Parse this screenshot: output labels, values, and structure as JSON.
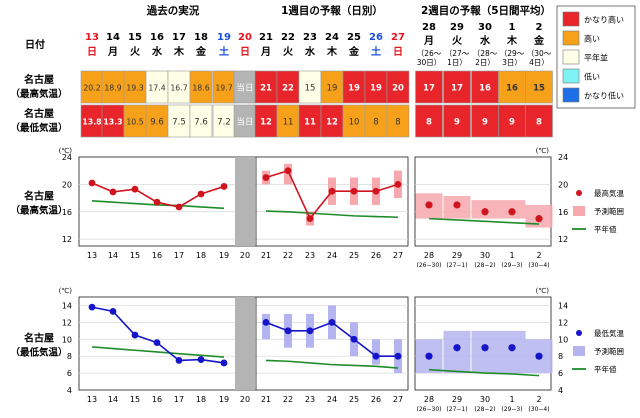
{
  "header": {
    "past_title": "過去の実況",
    "week1_title": "1週目の予報（日別）",
    "week2_title": "2週目の予報（5日間平均）",
    "date_label": "日付",
    "today": "当日"
  },
  "row_labels": {
    "city": "名古屋",
    "max": "（最高気温）",
    "min": "（最低気温）"
  },
  "daily": {
    "dates": [
      "13",
      "14",
      "15",
      "16",
      "17",
      "18",
      "19",
      "20",
      "21",
      "22",
      "23",
      "24",
      "25",
      "26",
      "27"
    ],
    "weekdays": [
      "日",
      "月",
      "火",
      "水",
      "木",
      "金",
      "土",
      "日",
      "月",
      "火",
      "水",
      "木",
      "金",
      "土",
      "日"
    ],
    "weekday_kind": [
      "sun",
      "wk",
      "wk",
      "wk",
      "wk",
      "wk",
      "sat",
      "sun",
      "wk",
      "wk",
      "wk",
      "wk",
      "wk",
      "sat",
      "sun"
    ],
    "max": [
      "20.2",
      "18.9",
      "19.3",
      "17.4",
      "16.7",
      "18.6",
      "19.7",
      "当日",
      "21",
      "22",
      "15",
      "19",
      "19",
      "19",
      "20"
    ],
    "max_class": [
      "o",
      "o",
      "o",
      "w",
      "w",
      "o",
      "o",
      "t",
      "r",
      "r",
      "w",
      "o",
      "r",
      "r",
      "r"
    ],
    "min": [
      "13.8",
      "13.3",
      "10.5",
      "9.6",
      "7.5",
      "7.6",
      "7.2",
      "当日",
      "12",
      "11",
      "11",
      "12",
      "10",
      "8",
      "8"
    ],
    "min_class": [
      "r",
      "r",
      "o",
      "o",
      "w",
      "w",
      "w",
      "t",
      "r",
      "o",
      "r",
      "r",
      "o",
      "o",
      "o"
    ]
  },
  "weekly": {
    "dates": [
      "28",
      "29",
      "30",
      "1",
      "2"
    ],
    "weekdays": [
      "月",
      "火",
      "水",
      "木",
      "金"
    ],
    "weekday_kind": [
      "wk",
      "wk",
      "wk",
      "wk",
      "wk"
    ],
    "ranges": [
      "（26〜30日）",
      "（27〜1日）",
      "（28〜2日）",
      "（29〜3日）",
      "（30〜4日）"
    ],
    "ranges_chart": [
      "(26−30)",
      "(27−1)",
      "(28−2)",
      "(29−3)",
      "(30−4)"
    ],
    "max": [
      "17",
      "17",
      "16",
      "16",
      "15"
    ],
    "max_class": [
      "r",
      "r",
      "r",
      "o",
      "o"
    ],
    "min": [
      "8",
      "9",
      "9",
      "9",
      "8"
    ],
    "min_class": [
      "r",
      "r",
      "r",
      "r",
      "r"
    ]
  },
  "legend_table": {
    "items": [
      {
        "label": "かなり高い",
        "color": "#e8252a"
      },
      {
        "label": "高い",
        "color": "#f7a11a"
      },
      {
        "label": "平年並",
        "color": "#ffffe8"
      },
      {
        "label": "低い",
        "color": "#7ff3f3"
      },
      {
        "label": "かなり低い",
        "color": "#1e6ee6"
      }
    ]
  },
  "colors": {
    "r": "#e8252a",
    "o": "#f7a11a",
    "w": "#ffffe8",
    "t": "#b4b4b4",
    "max_line": "#d0141e",
    "max_band": "#f6a8ad",
    "min_line": "#1414c8",
    "min_band": "#b4b4f0",
    "normal_line": "#1e8c28",
    "sun": "#e8141e",
    "sat": "#1e50dc"
  },
  "chart_data": [
    {
      "type": "line",
      "title": "",
      "row_label": [
        "名古屋",
        "（最高気温）"
      ],
      "unit": "(℃)",
      "ylim": [
        11,
        24
      ],
      "yticks": [
        12,
        16,
        20,
        24
      ],
      "x": [
        "13",
        "14",
        "15",
        "16",
        "17",
        "18",
        "19",
        "20",
        "21",
        "22",
        "23",
        "24",
        "25",
        "26",
        "27",
        "28",
        "29",
        "30",
        "1",
        "2"
      ],
      "past": {
        "x": [
          "13",
          "14",
          "15",
          "16",
          "17",
          "18",
          "19"
        ],
        "values": [
          20.2,
          18.9,
          19.3,
          17.4,
          16.7,
          18.6,
          19.7
        ]
      },
      "today": "20",
      "forecast": {
        "x": [
          "21",
          "22",
          "23",
          "24",
          "25",
          "26",
          "27"
        ],
        "values": [
          21,
          22,
          15,
          19,
          19,
          19,
          20
        ],
        "range_low": [
          20,
          20,
          14,
          17,
          17,
          17,
          18
        ],
        "range_high": [
          22,
          23,
          16,
          21,
          21,
          21,
          22
        ]
      },
      "weekly": {
        "x": [
          "28",
          "29",
          "30",
          "1",
          "2"
        ],
        "values": [
          17,
          17,
          16,
          16,
          15
        ],
        "range_low": [
          15,
          15,
          15,
          15,
          13.7
        ],
        "range_high": [
          18.7,
          18.3,
          17.7,
          17.7,
          17
        ]
      },
      "normal": {
        "x": [
          "13",
          "14",
          "15",
          "16",
          "17",
          "18",
          "19",
          "20",
          "21",
          "22",
          "23",
          "24",
          "25",
          "26",
          "27",
          "28",
          "29",
          "30",
          "1",
          "2"
        ],
        "values": [
          17.6,
          17.4,
          17.2,
          17.0,
          16.9,
          16.7,
          16.5,
          16.3,
          16.1,
          16.0,
          15.8,
          15.6,
          15.4,
          15.3,
          15.2,
          15.0,
          14.8,
          14.6,
          14.4,
          14.2
        ]
      },
      "legend": [
        "最高気温",
        "予測範囲",
        "平年値"
      ]
    },
    {
      "type": "line",
      "title": "",
      "row_label": [
        "名古屋",
        "（最低気温）"
      ],
      "unit": "(℃)",
      "ylim": [
        4,
        15
      ],
      "yticks": [
        4,
        6,
        8,
        10,
        12,
        14
      ],
      "x": [
        "13",
        "14",
        "15",
        "16",
        "17",
        "18",
        "19",
        "20",
        "21",
        "22",
        "23",
        "24",
        "25",
        "26",
        "27",
        "28",
        "29",
        "30",
        "1",
        "2"
      ],
      "past": {
        "x": [
          "13",
          "14",
          "15",
          "16",
          "17",
          "18",
          "19"
        ],
        "values": [
          13.8,
          13.3,
          10.5,
          9.6,
          7.5,
          7.6,
          7.2
        ]
      },
      "today": "20",
      "forecast": {
        "x": [
          "21",
          "22",
          "23",
          "24",
          "25",
          "26",
          "27"
        ],
        "values": [
          12,
          11,
          11,
          12,
          10,
          8,
          8
        ],
        "range_low": [
          10,
          9,
          9,
          10,
          8,
          7,
          6
        ],
        "range_high": [
          13,
          13,
          13,
          14,
          12,
          10,
          10
        ]
      },
      "weekly": {
        "x": [
          "28",
          "29",
          "30",
          "1",
          "2"
        ],
        "values": [
          8,
          9,
          9,
          9,
          8
        ],
        "range_low": [
          6,
          6,
          6,
          6,
          6
        ],
        "range_high": [
          10,
          11,
          11,
          11,
          10
        ]
      },
      "normal": {
        "x": [
          "13",
          "14",
          "15",
          "16",
          "17",
          "18",
          "19",
          "20",
          "21",
          "22",
          "23",
          "24",
          "25",
          "26",
          "27",
          "28",
          "29",
          "30",
          "1",
          "2"
        ],
        "values": [
          9.1,
          8.9,
          8.7,
          8.5,
          8.3,
          8.1,
          7.9,
          7.7,
          7.5,
          7.4,
          7.2,
          7.0,
          6.9,
          6.8,
          6.6,
          6.4,
          6.2,
          6.0,
          5.9,
          5.7
        ]
      },
      "legend": [
        "最低気温",
        "予測範囲",
        "平年値"
      ]
    }
  ]
}
